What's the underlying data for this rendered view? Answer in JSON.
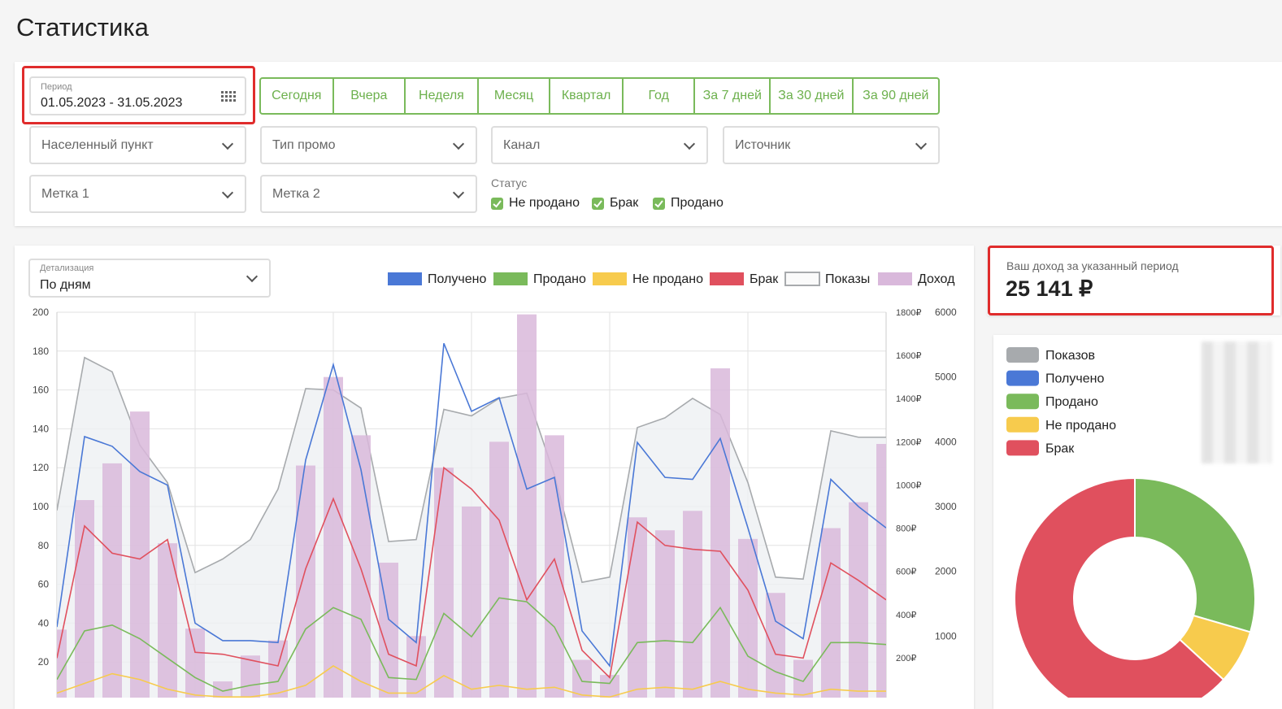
{
  "header": {
    "title": "Статистика"
  },
  "filters": {
    "period": {
      "label": "Период",
      "value": "01.05.2023 - 31.05.2023"
    },
    "quick_ranges": [
      "Сегодня",
      "Вчера",
      "Неделя",
      "Месяц",
      "Квартал",
      "Год",
      "За 7 дней",
      "За 30 дней",
      "За 90 дней"
    ],
    "selects": [
      "Населенный пункт",
      "Тип промо",
      "Канал",
      "Источник",
      "Метка 1",
      "Метка 2"
    ],
    "status": {
      "label": "Статус",
      "options": [
        "Не продано",
        "Брак",
        "Продано"
      ]
    }
  },
  "detail": {
    "label": "Детализация",
    "value": "По дням"
  },
  "income": {
    "label": "Ваш доход за указанный период",
    "value": "25 141 ₽"
  },
  "chart_data": [
    {
      "type": "combo",
      "categories": [
        null,
        null,
        null,
        null,
        null,
        null,
        null,
        null,
        null,
        null,
        null,
        null,
        null,
        null,
        null,
        null,
        null,
        null,
        null,
        null,
        null,
        null,
        null,
        null,
        null,
        null,
        null,
        null,
        null,
        null,
        null
      ],
      "ylim": [
        0,
        200
      ],
      "yticks": [
        20,
        40,
        60,
        80,
        100,
        120,
        140,
        160,
        180,
        200
      ],
      "y2lim": [
        0,
        1800
      ],
      "y2ticks": [
        {
          "value": 200,
          "label": "200₽"
        },
        {
          "value": 400,
          "label": "400₽"
        },
        {
          "value": 600,
          "label": "600₽"
        },
        {
          "value": 800,
          "label": "800₽"
        },
        {
          "value": 1000,
          "label": "1000₽"
        },
        {
          "value": 1200,
          "label": "1200₽"
        },
        {
          "value": 1400,
          "label": "1400₽"
        },
        {
          "value": 1600,
          "label": "1600₽"
        },
        {
          "value": 1800,
          "label": "1800₽"
        }
      ],
      "y3lim": [
        0,
        6000
      ],
      "y3ticks": [
        1000,
        2000,
        3000,
        4000,
        5000,
        6000
      ],
      "grid": true,
      "series": [
        {
          "name": "Получено",
          "type": "line",
          "color": "#4a78d6",
          "values": [
            38,
            136,
            131,
            118,
            111,
            40,
            31,
            31,
            30,
            124,
            173,
            119,
            42,
            30,
            184,
            149,
            156,
            109,
            115,
            36,
            18,
            133,
            115,
            114,
            135,
            89,
            41,
            32,
            114,
            100,
            89
          ]
        },
        {
          "name": "Продано",
          "type": "line",
          "color": "#7aba5b",
          "values": [
            11,
            36,
            39,
            32,
            22,
            12,
            5,
            8,
            10,
            37,
            48,
            42,
            12,
            11,
            45,
            33,
            53,
            51,
            38,
            10,
            9,
            30,
            31,
            30,
            48,
            23,
            15,
            10,
            30,
            30,
            29
          ]
        },
        {
          "name": "Не продано",
          "type": "line",
          "color": "#f7cb4d",
          "values": [
            4,
            9,
            14,
            11,
            6,
            3,
            2,
            2,
            4,
            8,
            18,
            10,
            4,
            4,
            13,
            6,
            8,
            6,
            7,
            3,
            2,
            6,
            7,
            6,
            10,
            6,
            4,
            3,
            6,
            5,
            5
          ]
        },
        {
          "name": "Брак",
          "type": "line",
          "color": "#e0505e",
          "values": [
            22,
            90,
            76,
            73,
            83,
            25,
            24,
            21,
            18,
            68,
            104,
            68,
            24,
            18,
            120,
            109,
            93,
            52,
            73,
            26,
            12,
            92,
            80,
            78,
            77,
            57,
            24,
            22,
            71,
            62,
            52
          ]
        },
        {
          "name": "Показы",
          "type": "area",
          "axis": "y3",
          "color": "#a7aaad",
          "fill": "#eef0f2",
          "values": [
            2940,
            5300,
            5080,
            3950,
            3370,
            1980,
            2190,
            2490,
            3270,
            4820,
            4800,
            4520,
            2460,
            2490,
            4500,
            4400,
            4670,
            4750,
            3490,
            1830,
            1910,
            4220,
            4370,
            4670,
            4420,
            3370,
            1910,
            1880,
            4170,
            4070,
            4070
          ]
        },
        {
          "name": "Доход",
          "type": "bar",
          "axis": "y2",
          "color": "#d9b8db",
          "values": [
            330,
            930,
            1100,
            1340,
            730,
            335,
            90,
            210,
            280,
            1090,
            1500,
            1230,
            640,
            300,
            1080,
            900,
            1200,
            1790,
            1230,
            190,
            120,
            850,
            790,
            880,
            1540,
            750,
            500,
            190,
            800,
            920,
            1190
          ]
        }
      ]
    },
    {
      "type": "donut",
      "legend": [
        {
          "name": "Показов",
          "color": "#a7aaad"
        },
        {
          "name": "Получено",
          "color": "#4a78d6"
        },
        {
          "name": "Продано",
          "color": "#7aba5b"
        },
        {
          "name": "Не продано",
          "color": "#f7cb4d"
        },
        {
          "name": "Брак",
          "color": "#e0505e"
        }
      ],
      "categories": [
        "Продано",
        "Не продано",
        "Брак"
      ],
      "values": [
        85,
        21,
        182
      ],
      "colors": [
        "#7aba5b",
        "#f7cb4d",
        "#e0505e"
      ]
    }
  ]
}
